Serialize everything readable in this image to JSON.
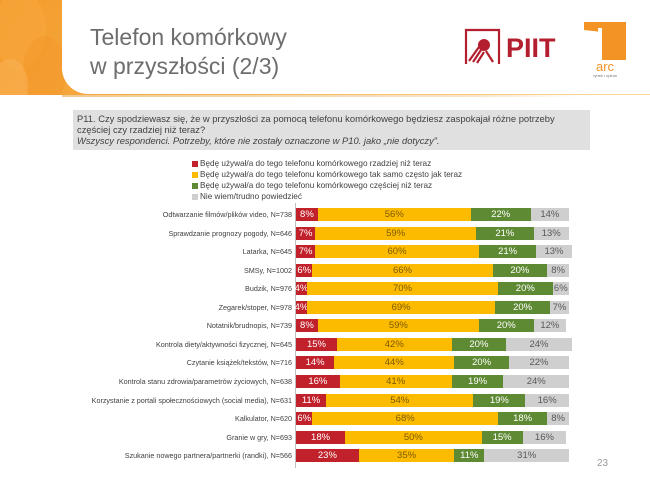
{
  "slide": {
    "title_line1": "Telefon komórkowy",
    "title_line2": "w przyszłości (2/3)",
    "logos": [
      {
        "name": "PIIT",
        "text": "PIIT",
        "color": "#b41f2f"
      },
      {
        "name": "ARC rynek i opinia",
        "text": "arc",
        "tagline": "rynek i opinia",
        "color": "#f39325"
      }
    ],
    "page_number": "23"
  },
  "question": {
    "text": "P11. Czy spodziewasz się, że w przyszłości za pomocą telefonu komórkowego będziesz zaspokajał różne potrzeby częściej czy rzadziej niż teraz?",
    "subtext": "Wszyscy respondenci. Potrzeby, które nie zostały oznaczone w P10. jako „nie dotyczy”."
  },
  "chart_data": {
    "type": "bar",
    "orientation": "horizontal",
    "stacked": true,
    "percent": true,
    "title": "",
    "xlabel": "",
    "ylabel": "",
    "xlim": [
      0,
      100
    ],
    "grid": false,
    "legend_position": "top",
    "categories": [
      "Odtwarzanie filmów/plików video, N=738",
      "Sprawdzanie prognozy pogody, N=646",
      "Latarka, N=645",
      "SMSy, N=1002",
      "Budzik, N=976",
      "Zegarek/stoper, N=978",
      "Notatnik/brudnopis, N=739",
      "Kontrola diety/aktywności fizycznej, N=645",
      "Czytanie książek/tekstów, N=716",
      "Kontrola stanu zdrowia/parametrów życiowych, N=638",
      "Korzystanie z portali społecznościowych (social media), N=631",
      "Kalkulator, N=620",
      "Granie w gry, N=693",
      "Szukanie nowego partnera/partnerki (randki), N=566"
    ],
    "series": [
      {
        "name": "Będę używał/a do tego telefonu komórkowego rzadziej niż teraz",
        "color": "#c0212a",
        "label_color": "#ffffff",
        "values": [
          8,
          7,
          7,
          6,
          4,
          4,
          8,
          15,
          14,
          16,
          11,
          6,
          18,
          23
        ]
      },
      {
        "name": "Będę używał/a do tego telefonu komórkowego tak samo często jak teraz",
        "color": "#fdbb00",
        "label_color": "#7a5a00",
        "values": [
          56,
          59,
          60,
          66,
          70,
          69,
          59,
          42,
          44,
          41,
          54,
          68,
          50,
          35
        ]
      },
      {
        "name": "Będę używał/a do tego telefonu komórkowego częściej niż teraz",
        "color": "#5f8a34",
        "label_color": "#ffffff",
        "values": [
          22,
          21,
          21,
          20,
          20,
          20,
          20,
          20,
          20,
          19,
          19,
          18,
          15,
          11
        ]
      },
      {
        "name": "Nie wiem/trudno powiedzieć",
        "color": "#cfcfcf",
        "label_color": "#595959",
        "values": [
          14,
          13,
          13,
          8,
          6,
          7,
          12,
          24,
          22,
          24,
          16,
          8,
          16,
          31
        ]
      }
    ]
  }
}
